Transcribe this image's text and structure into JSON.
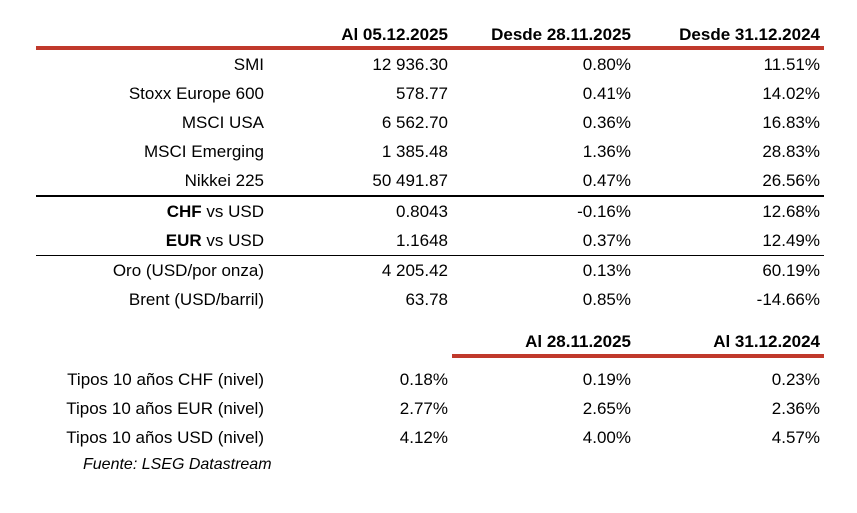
{
  "colors": {
    "accent_red": "#C0392B",
    "rule_black": "#000000",
    "text": "#000000",
    "background": "#FFFFFF"
  },
  "table1": {
    "headers": {
      "col2": "Al 05.12.2025",
      "col3": "Desde 28.11.2025",
      "col4": "Desde 31.12.2024"
    },
    "rows": [
      {
        "label": "SMI",
        "values": [
          "12 936.30",
          "0.80%",
          "11.51%"
        ]
      },
      {
        "label": "Stoxx Europe 600",
        "values": [
          "578.77",
          "0.41%",
          "14.02%"
        ]
      },
      {
        "label": "MSCI USA",
        "values": [
          "6 562.70",
          "0.36%",
          "16.83%"
        ]
      },
      {
        "label": "MSCI Emerging",
        "values": [
          "1 385.48",
          "1.36%",
          "28.83%"
        ]
      },
      {
        "label": "Nikkei 225",
        "values": [
          "50 491.87",
          "0.47%",
          "26.56%"
        ]
      },
      {
        "label_bold": "CHF",
        "label_rest": " vs USD",
        "values": [
          "0.8043",
          "-0.16%",
          "12.68%"
        ]
      },
      {
        "label_bold": "EUR",
        "label_rest": " vs USD",
        "values": [
          "1.1648",
          "0.37%",
          "12.49%"
        ]
      },
      {
        "label": "Oro (USD/por onza)",
        "values": [
          "4 205.42",
          "0.13%",
          "60.19%"
        ]
      },
      {
        "label": "Brent (USD/barril)",
        "values": [
          "63.78",
          "0.85%",
          "-14.66%"
        ]
      }
    ]
  },
  "table2": {
    "headers": {
      "col3": "Al 28.11.2025",
      "col4": "Al 31.12.2024"
    },
    "rows": [
      {
        "label": "Tipos 10 años CHF (nivel)",
        "values": [
          "0.18%",
          "0.19%",
          "0.23%"
        ]
      },
      {
        "label": "Tipos 10 años EUR (nivel)",
        "values": [
          "2.77%",
          "2.65%",
          "2.36%"
        ]
      },
      {
        "label": "Tipos 10 años USD (nivel)",
        "values": [
          "4.12%",
          "4.00%",
          "4.57%"
        ]
      }
    ]
  },
  "source": "Fuente: LSEG Datastream"
}
